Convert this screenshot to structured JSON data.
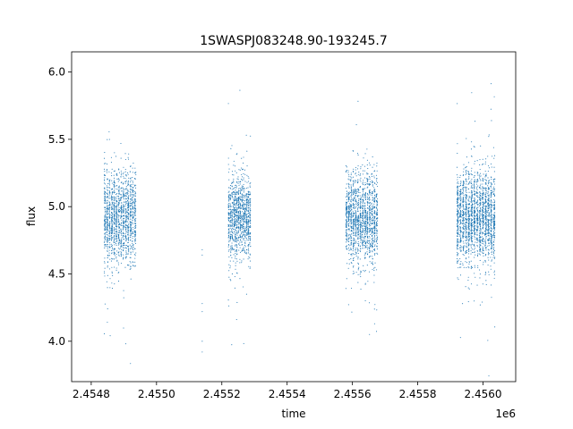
{
  "chart_data": {
    "type": "scatter",
    "title": "1SWASPJ083248.90-193245.7",
    "xlabel": "time",
    "ylabel": "flux",
    "x_offset_label": "1e6",
    "xlim": [
      2.45474,
      2.4561
    ],
    "ylim": [
      3.7,
      6.15
    ],
    "x_ticks": [
      {
        "value": 2.4548,
        "label": "2.4548"
      },
      {
        "value": 2.455,
        "label": "2.4550"
      },
      {
        "value": 2.4552,
        "label": "2.4552"
      },
      {
        "value": 2.4554,
        "label": "2.4554"
      },
      {
        "value": 2.4556,
        "label": "2.4556"
      },
      {
        "value": 2.4558,
        "label": "2.4558"
      },
      {
        "value": 2.456,
        "label": "2.4560"
      }
    ],
    "y_ticks": [
      {
        "value": 4.0,
        "label": "4.0"
      },
      {
        "value": 4.5,
        "label": "4.5"
      },
      {
        "value": 5.0,
        "label": "5.0"
      },
      {
        "value": 5.5,
        "label": "5.5"
      },
      {
        "value": 6.0,
        "label": "6.0"
      }
    ],
    "grid": false,
    "marker_color": "#1f77b4",
    "clusters": [
      {
        "x_start": 2.45484,
        "x_end": 2.45494,
        "center": 4.92,
        "sigma": 0.17,
        "count": 1500
      },
      {
        "x_start": 2.45522,
        "x_end": 2.45529,
        "center": 4.92,
        "sigma": 0.15,
        "count": 1100
      },
      {
        "x_start": 2.45558,
        "x_end": 2.45568,
        "center": 4.92,
        "sigma": 0.17,
        "count": 1500
      },
      {
        "x_start": 2.45592,
        "x_end": 2.45604,
        "center": 4.92,
        "sigma": 0.17,
        "count": 2000
      }
    ],
    "isolated_points": [
      {
        "x": 2.45514,
        "y": 4.68
      },
      {
        "x": 2.45514,
        "y": 4.64
      },
      {
        "x": 2.45514,
        "y": 4.28
      },
      {
        "x": 2.45514,
        "y": 4.22
      },
      {
        "x": 2.45514,
        "y": 4.0
      },
      {
        "x": 2.45514,
        "y": 3.92
      }
    ]
  }
}
